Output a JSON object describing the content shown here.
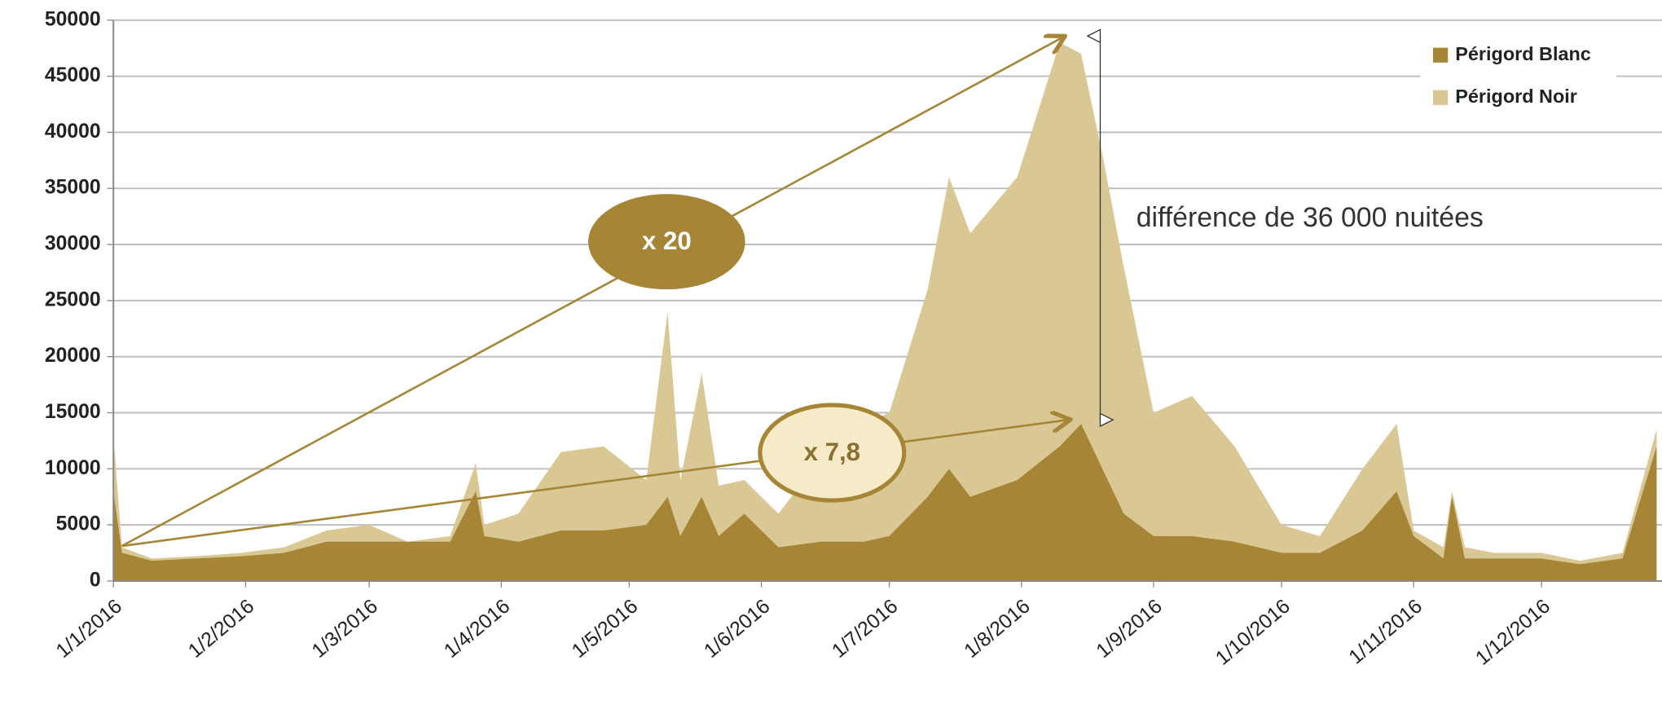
{
  "chart_data": {
    "type": "area",
    "x": [
      "2016-01-01",
      "2016-01-03",
      "2016-01-10",
      "2016-01-20",
      "2016-01-31",
      "2016-02-10",
      "2016-02-20",
      "2016-03-01",
      "2016-03-10",
      "2016-03-20",
      "2016-03-26",
      "2016-03-28",
      "2016-04-05",
      "2016-04-15",
      "2016-04-25",
      "2016-05-05",
      "2016-05-10",
      "2016-05-13",
      "2016-05-18",
      "2016-05-22",
      "2016-05-28",
      "2016-06-05",
      "2016-06-15",
      "2016-06-25",
      "2016-07-01",
      "2016-07-10",
      "2016-07-15",
      "2016-07-20",
      "2016-07-31",
      "2016-08-10",
      "2016-08-15",
      "2016-08-20",
      "2016-08-25",
      "2016-09-01",
      "2016-09-10",
      "2016-09-20",
      "2016-10-01",
      "2016-10-10",
      "2016-10-20",
      "2016-10-28",
      "2016-11-01",
      "2016-11-08",
      "2016-11-10",
      "2016-11-13",
      "2016-11-20",
      "2016-12-01",
      "2016-12-10",
      "2016-12-20",
      "2016-12-28"
    ],
    "series": [
      {
        "name": "Périgord Noir",
        "color": "#d9c794",
        "values": [
          13000,
          3000,
          2000,
          2200,
          2500,
          3000,
          4500,
          5000,
          3500,
          4000,
          10500,
          5000,
          6000,
          11500,
          12000,
          9000,
          24000,
          9000,
          18500,
          8500,
          9000,
          6000,
          11000,
          14000,
          15000,
          26000,
          36000,
          31000,
          36000,
          48000,
          47000,
          38000,
          28000,
          15000,
          16500,
          12000,
          5000,
          4000,
          10000,
          14000,
          4500,
          3000,
          8000,
          3000,
          2500,
          2500,
          1800,
          2500,
          13500
        ]
      },
      {
        "name": "Périgord Blanc",
        "color": "#a68636",
        "values": [
          8000,
          2500,
          1800,
          2000,
          2200,
          2500,
          3500,
          3500,
          3500,
          3500,
          8000,
          4000,
          3500,
          4500,
          4500,
          5000,
          7500,
          4000,
          7500,
          4000,
          6000,
          3000,
          3500,
          3500,
          4000,
          7500,
          10000,
          7500,
          9000,
          12000,
          14000,
          10000,
          6000,
          4000,
          4000,
          3500,
          2500,
          2500,
          4500,
          8000,
          4000,
          2000,
          7500,
          2000,
          2000,
          2000,
          1500,
          2000,
          12000
        ]
      }
    ],
    "xlim": [
      "2016-01-01",
      "2016-12-31"
    ],
    "xticks": [
      {
        "value": "2016-01-01",
        "label": "1/1/2016"
      },
      {
        "value": "2016-02-01",
        "label": "1/2/2016"
      },
      {
        "value": "2016-03-01",
        "label": "1/3/2016"
      },
      {
        "value": "2016-04-01",
        "label": "1/4/2016"
      },
      {
        "value": "2016-05-01",
        "label": "1/5/2016"
      },
      {
        "value": "2016-06-01",
        "label": "1/6/2016"
      },
      {
        "value": "2016-07-01",
        "label": "1/7/2016"
      },
      {
        "value": "2016-08-01",
        "label": "1/8/2016"
      },
      {
        "value": "2016-09-01",
        "label": "1/9/2016"
      },
      {
        "value": "2016-10-01",
        "label": "1/10/2016"
      },
      {
        "value": "2016-11-01",
        "label": "1/11/2016"
      },
      {
        "value": "2016-12-01",
        "label": "1/12/2016"
      }
    ],
    "ylim": [
      0,
      50000
    ],
    "yticks": [
      0,
      5000,
      10000,
      15000,
      20000,
      25000,
      30000,
      35000,
      40000,
      45000,
      50000
    ],
    "grid": true,
    "legend": "top-right",
    "annotations": [
      "x 20",
      "x 7,8",
      "différence de 36 000 nuitées"
    ]
  }
}
